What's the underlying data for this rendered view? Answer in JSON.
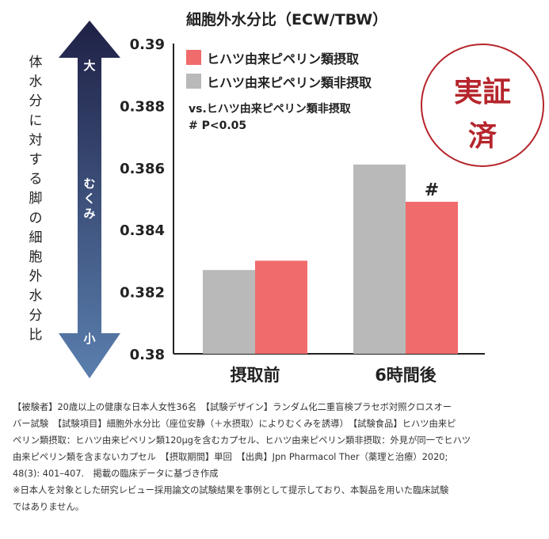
{
  "chart_data": {
    "type": "bar",
    "title": "細胞外水分比（ECW/TBW）",
    "categories": [
      "摂取前",
      "6時間後"
    ],
    "series": [
      {
        "name": "ヒハツ由来ピペリン類非摂取",
        "color": "#b9b9b9",
        "values": [
          0.3827,
          0.3861
        ]
      },
      {
        "name": "ヒハツ由来ピペリン類摂取",
        "color": "#f06b6b",
        "values": [
          0.383,
          0.3849
        ]
      }
    ],
    "ylim": [
      0.38,
      0.39
    ],
    "yticks": [
      "0.39",
      "0.388",
      "0.386",
      "0.384",
      "0.382",
      "0.38"
    ],
    "ylabel": "体水分に対する脚の細胞外水分比",
    "legend_position": "top-right",
    "significance_mark": "#",
    "note_lines": [
      "vs.ヒハツ由来ピペリン類非摂取",
      "# P<0.05"
    ]
  },
  "arrow": {
    "top_label": "大",
    "middle_label": "むくみ",
    "bottom_label": "小",
    "color_top": "#1f2146",
    "color_bottom": "#5a7fae"
  },
  "stamp": {
    "line1": "実証",
    "line2": "済",
    "color": "#b5252b"
  },
  "footnote": {
    "lines": [
      "【被験者】20歳以上の健康な日本人女性36名　【試験デザイン】ランダム化二重盲検プラセボ対照クロスオー",
      "バー試験　【試験項目】細胞外水分比（座位安静（＋水摂取）によりむくみを誘導）　【試験食品】ヒハツ由来ピ",
      "ペリン類摂取：ヒハツ由来ピペリン類120μgを含むカプセル、ヒハツ由来ピペリン類非摂取：外見が同一でヒハツ",
      "由来ピペリン類を含まないカプセル　【摂取期間】単回　【出典】Jpn Pharmacol Ther（薬理と治療）2020;",
      "48(3): 401–407.　掲載の臨床データに基づき作成",
      "※日本人を対象とした研究レビュー採用論文の試験結果を事例として提示しており、本製品を用いた臨床試験",
      "ではありません。"
    ]
  }
}
